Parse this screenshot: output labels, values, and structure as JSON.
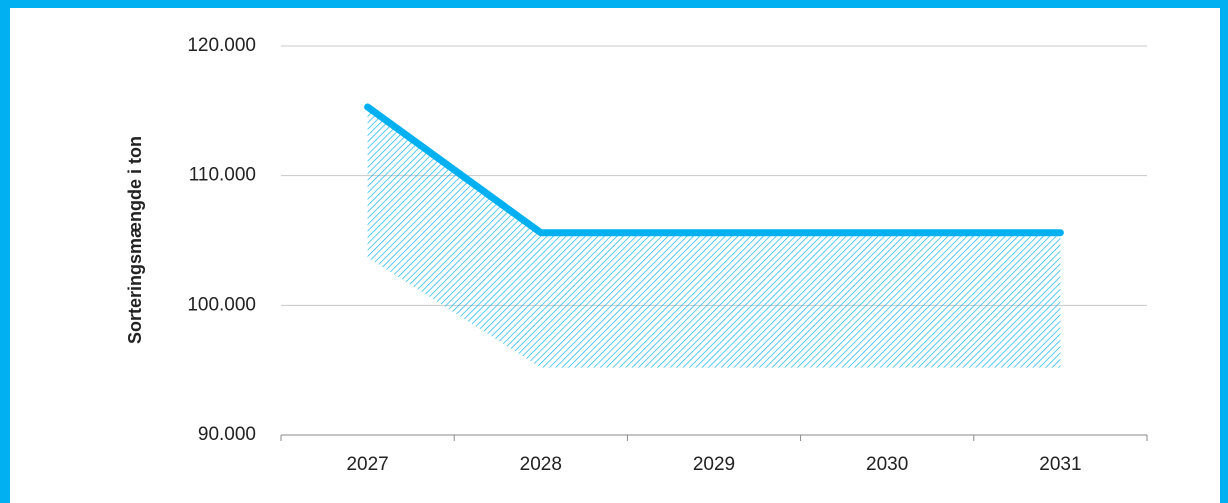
{
  "chart_data": {
    "type": "band-line",
    "y_axis_label": "Sorteringsmængde i ton",
    "categories": [
      "2027",
      "2028",
      "2029",
      "2030",
      "2031"
    ],
    "series": [
      {
        "kind": "line",
        "color": "#00b0f0",
        "values": [
          115300,
          105600,
          105600,
          105600,
          105600
        ]
      },
      {
        "kind": "hatch-lower",
        "color": "#00b0f0",
        "values": [
          103700,
          95200,
          95200,
          95200,
          95200
        ]
      }
    ],
    "ylim": [
      90000,
      120000
    ],
    "yticks": [
      {
        "value": 90000,
        "label": "90.000"
      },
      {
        "value": 100000,
        "label": "100.000"
      },
      {
        "value": 110000,
        "label": "110.000"
      },
      {
        "value": 120000,
        "label": "120.000"
      }
    ],
    "grid": true
  }
}
